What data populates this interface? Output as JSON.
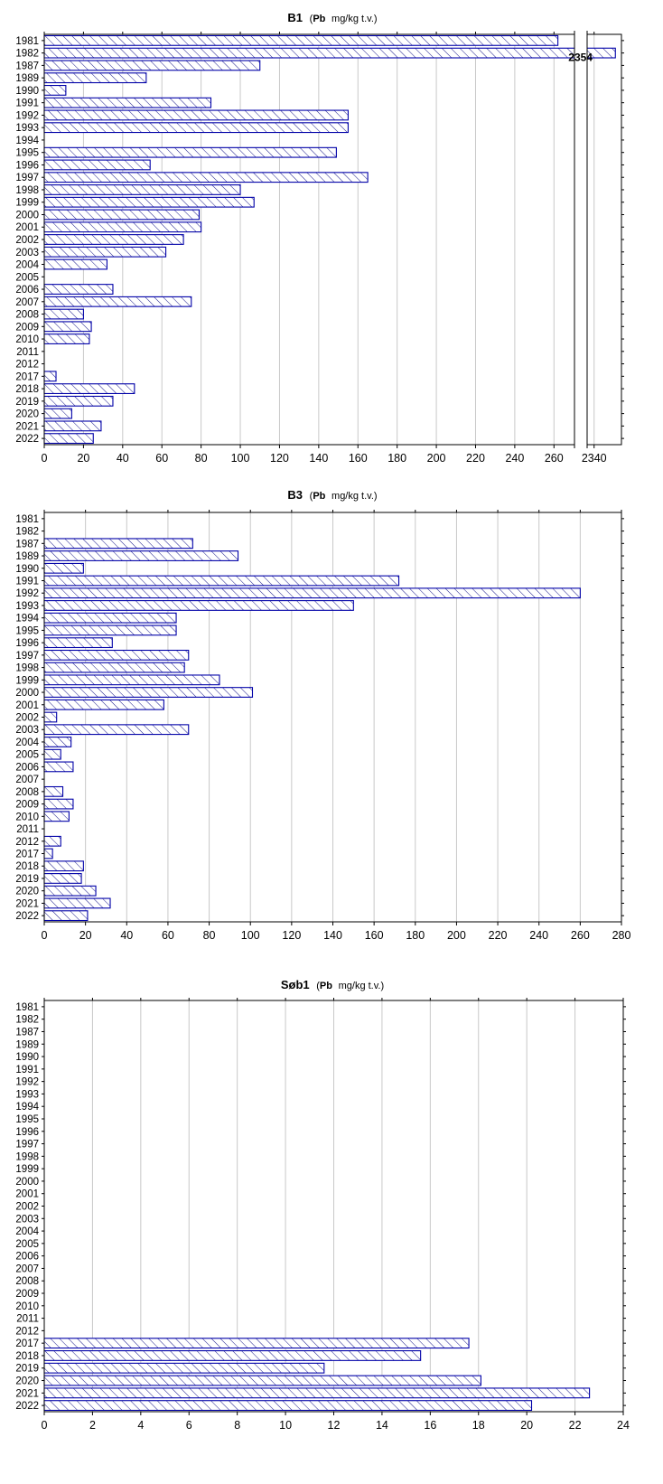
{
  "colors": {
    "bar_stroke": "#0000a8",
    "bar_hatch": "#1a1a8c",
    "grid": "#c8c8c8",
    "axis": "#000000"
  },
  "chart_data": [
    {
      "type": "bar",
      "orientation": "horizontal",
      "title_main": "B1",
      "title_element": "Pb",
      "title_unit": "mg/kg t.v.",
      "categories": [
        "1981",
        "1982",
        "1987",
        "1989",
        "1990",
        "1991",
        "1992",
        "1993",
        "1994",
        "1995",
        "1996",
        "1997",
        "1998",
        "1999",
        "2000",
        "2001",
        "2002",
        "2003",
        "2004",
        "2005",
        "2006",
        "2007",
        "2008",
        "2009",
        "2010",
        "2011",
        "2012",
        "2017",
        "2018",
        "2019",
        "2020",
        "2021",
        "2022"
      ],
      "values": [
        262,
        2354,
        110,
        52,
        11,
        85,
        155,
        155,
        null,
        149,
        54,
        165,
        100,
        107,
        79,
        80,
        71,
        62,
        32,
        null,
        35,
        75,
        20,
        24,
        23,
        null,
        null,
        6,
        46,
        35,
        14,
        29,
        25
      ],
      "xlim": [
        0,
        270
      ],
      "axis_break": {
        "after": 270,
        "segment": [
          2336,
          2358
        ],
        "ticks": [
          2340
        ]
      },
      "ticks": [
        0,
        20,
        40,
        60,
        80,
        100,
        120,
        140,
        160,
        180,
        200,
        220,
        240,
        260,
        2340
      ],
      "annotations": [
        {
          "category": "1982",
          "label": "2354"
        }
      ],
      "grid": true,
      "hatch": "diagonal"
    },
    {
      "type": "bar",
      "orientation": "horizontal",
      "title_main": "B3",
      "title_element": "Pb",
      "title_unit": "mg/kg t.v.",
      "categories": [
        "1981",
        "1982",
        "1987",
        "1989",
        "1990",
        "1991",
        "1992",
        "1993",
        "1994",
        "1995",
        "1996",
        "1997",
        "1998",
        "1999",
        "2000",
        "2001",
        "2002",
        "2003",
        "2004",
        "2005",
        "2006",
        "2007",
        "2008",
        "2009",
        "2010",
        "2011",
        "2012",
        "2017",
        "2018",
        "2019",
        "2020",
        "2021",
        "2022"
      ],
      "values": [
        null,
        null,
        72,
        94,
        19,
        172,
        260,
        150,
        64,
        64,
        33,
        70,
        68,
        85,
        101,
        58,
        6,
        70,
        13,
        8,
        14,
        null,
        9,
        14,
        12,
        null,
        8,
        4,
        19,
        18,
        25,
        32,
        21
      ],
      "xlim": [
        0,
        280
      ],
      "ticks": [
        0,
        20,
        40,
        60,
        80,
        100,
        120,
        140,
        160,
        180,
        200,
        220,
        240,
        260,
        280
      ],
      "grid": true,
      "hatch": "diagonal"
    },
    {
      "type": "bar",
      "orientation": "horizontal",
      "title_main": "Søb1",
      "title_element": "Pb",
      "title_unit": "mg/kg t.v.",
      "categories": [
        "1981",
        "1982",
        "1987",
        "1989",
        "1990",
        "1991",
        "1992",
        "1993",
        "1994",
        "1995",
        "1996",
        "1997",
        "1998",
        "1999",
        "2000",
        "2001",
        "2002",
        "2003",
        "2004",
        "2005",
        "2006",
        "2007",
        "2008",
        "2009",
        "2010",
        "2011",
        "2012",
        "2017",
        "2018",
        "2019",
        "2020",
        "2021",
        "2022"
      ],
      "values": [
        null,
        null,
        null,
        null,
        null,
        null,
        null,
        null,
        null,
        null,
        null,
        null,
        null,
        null,
        null,
        null,
        null,
        null,
        null,
        null,
        null,
        null,
        null,
        null,
        null,
        null,
        null,
        17.6,
        15.6,
        11.6,
        18.1,
        22.6,
        20.2
      ],
      "xlim": [
        0,
        24
      ],
      "ticks": [
        0,
        2,
        4,
        6,
        8,
        10,
        12,
        14,
        16,
        18,
        20,
        22,
        24
      ],
      "grid": true,
      "hatch": "diagonal"
    }
  ]
}
